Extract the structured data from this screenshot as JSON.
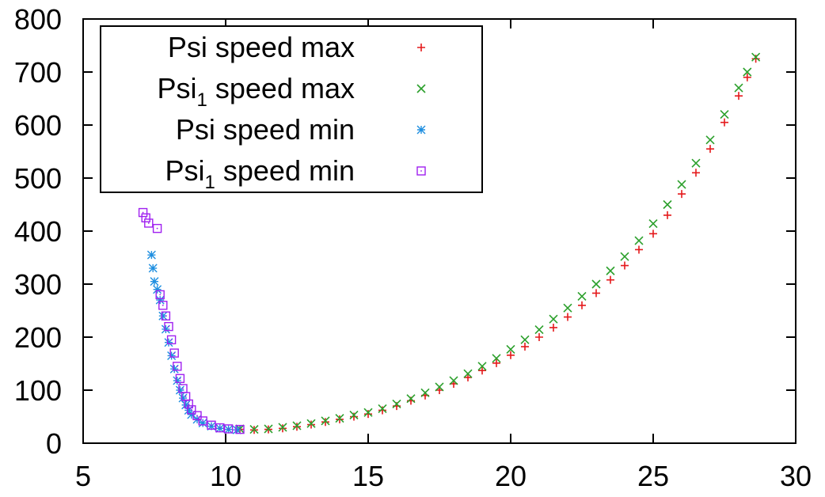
{
  "chart_data": {
    "type": "scatter",
    "title": "",
    "xlabel": "",
    "ylabel": "",
    "xlim": [
      5,
      30
    ],
    "ylim": [
      0,
      800
    ],
    "xticks": [
      5,
      10,
      15,
      20,
      25,
      30
    ],
    "yticks": [
      0,
      100,
      200,
      300,
      400,
      500,
      600,
      700,
      800
    ],
    "grid": false,
    "legend_position": "top-left",
    "series": [
      {
        "name": "Psi speed max",
        "name_base": "Psi",
        "name_sub": "",
        "name_rest": " speed max",
        "marker": "plus",
        "color": "#e41a1c",
        "points": [
          [
            10.5,
            26
          ],
          [
            11,
            25
          ],
          [
            11.5,
            26
          ],
          [
            12,
            28
          ],
          [
            12.5,
            31
          ],
          [
            13,
            35
          ],
          [
            13.5,
            40
          ],
          [
            14,
            45
          ],
          [
            14.5,
            50
          ],
          [
            15,
            55
          ],
          [
            15.5,
            62
          ],
          [
            16,
            70
          ],
          [
            16.5,
            80
          ],
          [
            17,
            90
          ],
          [
            17.5,
            100
          ],
          [
            18,
            112
          ],
          [
            18.5,
            124
          ],
          [
            19,
            137
          ],
          [
            19.5,
            151
          ],
          [
            20,
            166
          ],
          [
            20.5,
            182
          ],
          [
            21,
            200
          ],
          [
            21.5,
            218
          ],
          [
            22,
            238
          ],
          [
            22.5,
            260
          ],
          [
            23,
            283
          ],
          [
            23.5,
            308
          ],
          [
            24,
            335
          ],
          [
            24.5,
            365
          ],
          [
            25,
            395
          ],
          [
            25.5,
            430
          ],
          [
            26,
            470
          ],
          [
            26.5,
            510
          ],
          [
            27,
            555
          ],
          [
            27.5,
            605
          ],
          [
            28,
            655
          ],
          [
            28.3,
            690
          ],
          [
            28.6,
            725
          ]
        ]
      },
      {
        "name": "Psi1 speed max",
        "name_base": "Psi",
        "name_sub": "1",
        "name_rest": " speed max",
        "marker": "cross",
        "color": "#2ca02c",
        "points": [
          [
            10.5,
            27
          ],
          [
            11,
            26
          ],
          [
            11.5,
            27
          ],
          [
            12,
            30
          ],
          [
            12.5,
            33
          ],
          [
            13,
            37
          ],
          [
            13.5,
            42
          ],
          [
            14,
            47
          ],
          [
            14.5,
            53
          ],
          [
            15,
            58
          ],
          [
            15.5,
            65
          ],
          [
            16,
            74
          ],
          [
            16.5,
            84
          ],
          [
            17,
            95
          ],
          [
            17.5,
            106
          ],
          [
            18,
            118
          ],
          [
            18.5,
            131
          ],
          [
            19,
            145
          ],
          [
            19.5,
            160
          ],
          [
            20,
            177
          ],
          [
            20.5,
            195
          ],
          [
            21,
            214
          ],
          [
            21.5,
            234
          ],
          [
            22,
            255
          ],
          [
            22.5,
            277
          ],
          [
            23,
            300
          ],
          [
            23.5,
            325
          ],
          [
            24,
            352
          ],
          [
            24.5,
            382
          ],
          [
            25,
            414
          ],
          [
            25.5,
            450
          ],
          [
            26,
            488
          ],
          [
            26.5,
            528
          ],
          [
            27,
            572
          ],
          [
            27.5,
            620
          ],
          [
            28,
            670
          ],
          [
            28.3,
            700
          ],
          [
            28.6,
            728
          ]
        ]
      },
      {
        "name": "Psi speed min",
        "name_base": "Psi",
        "name_sub": "",
        "name_rest": " speed min",
        "marker": "star",
        "color": "#1f8fe0",
        "points": [
          [
            7.4,
            355
          ],
          [
            7.45,
            330
          ],
          [
            7.5,
            305
          ],
          [
            7.6,
            290
          ],
          [
            7.7,
            270
          ],
          [
            7.8,
            240
          ],
          [
            7.9,
            215
          ],
          [
            8,
            190
          ],
          [
            8.1,
            165
          ],
          [
            8.2,
            140
          ],
          [
            8.3,
            118
          ],
          [
            8.4,
            100
          ],
          [
            8.5,
            85
          ],
          [
            8.6,
            72
          ],
          [
            8.7,
            62
          ],
          [
            8.8,
            54
          ],
          [
            9,
            45
          ],
          [
            9.2,
            38
          ],
          [
            9.5,
            32
          ],
          [
            9.8,
            28
          ],
          [
            10.1,
            26
          ],
          [
            10.4,
            25
          ]
        ]
      },
      {
        "name": "Psi1 speed min",
        "name_base": "Psi",
        "name_sub": "1",
        "name_rest": " speed min",
        "marker": "square",
        "color": "#a020f0",
        "points": [
          [
            7.1,
            435
          ],
          [
            7.2,
            425
          ],
          [
            7.3,
            415
          ],
          [
            7.6,
            405
          ],
          [
            7.7,
            280
          ],
          [
            7.8,
            260
          ],
          [
            7.9,
            240
          ],
          [
            8,
            220
          ],
          [
            8.1,
            195
          ],
          [
            8.2,
            170
          ],
          [
            8.3,
            145
          ],
          [
            8.4,
            122
          ],
          [
            8.5,
            103
          ],
          [
            8.6,
            88
          ],
          [
            8.7,
            74
          ],
          [
            8.8,
            63
          ],
          [
            9,
            52
          ],
          [
            9.2,
            42
          ],
          [
            9.5,
            34
          ],
          [
            9.8,
            29
          ],
          [
            10.1,
            27
          ],
          [
            10.5,
            26
          ]
        ]
      }
    ]
  }
}
